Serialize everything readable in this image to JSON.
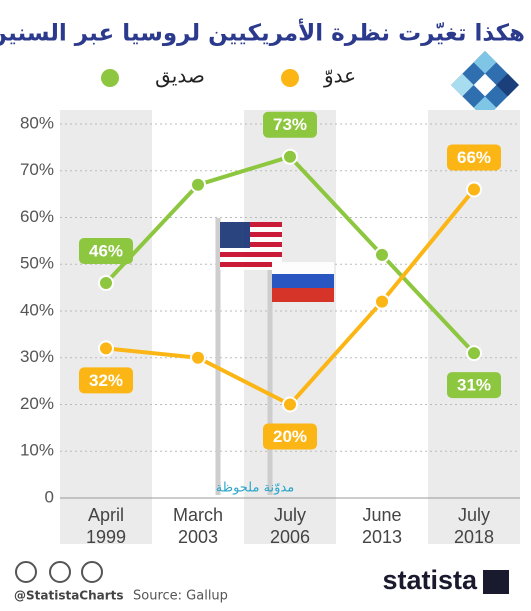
{
  "chart_data": {
    "type": "line",
    "title": "هكذا تغيّرت نظرة الأمريكيين لروسيا عبر السنين",
    "categories": [
      "April 1999",
      "March 2003",
      "July 2006",
      "June 2013",
      "July 2018"
    ],
    "series": [
      {
        "name": "صديق",
        "color": "#8dc63f",
        "values": [
          46,
          67,
          73,
          52,
          31
        ],
        "value_labels": [
          "46%",
          null,
          "73%",
          null,
          "31%"
        ]
      },
      {
        "name": "عدوّ",
        "color": "#fbb615",
        "values": [
          32,
          30,
          20,
          42,
          66
        ],
        "value_labels": [
          "32%",
          null,
          "20%",
          null,
          "66%"
        ]
      }
    ],
    "ylim": [
      0,
      80
    ],
    "yticks": [
      0,
      {
        "value": 10,
        "label": "10%"
      },
      {
        "value": 20,
        "label": "20%"
      },
      {
        "value": 30,
        "label": "30%"
      },
      {
        "value": 40,
        "label": "40%"
      },
      {
        "value": 50,
        "label": "50%"
      },
      {
        "value": 60,
        "label": "60%"
      },
      {
        "value": 70,
        "label": "70%"
      },
      {
        "value": 80,
        "label": "80%"
      }
    ],
    "grid": true,
    "annotation": "مدوّنة ملحوظة",
    "footer": {
      "handle": "@StatistaCharts",
      "source": "Source: Gallup",
      "brand": "statista"
    }
  }
}
